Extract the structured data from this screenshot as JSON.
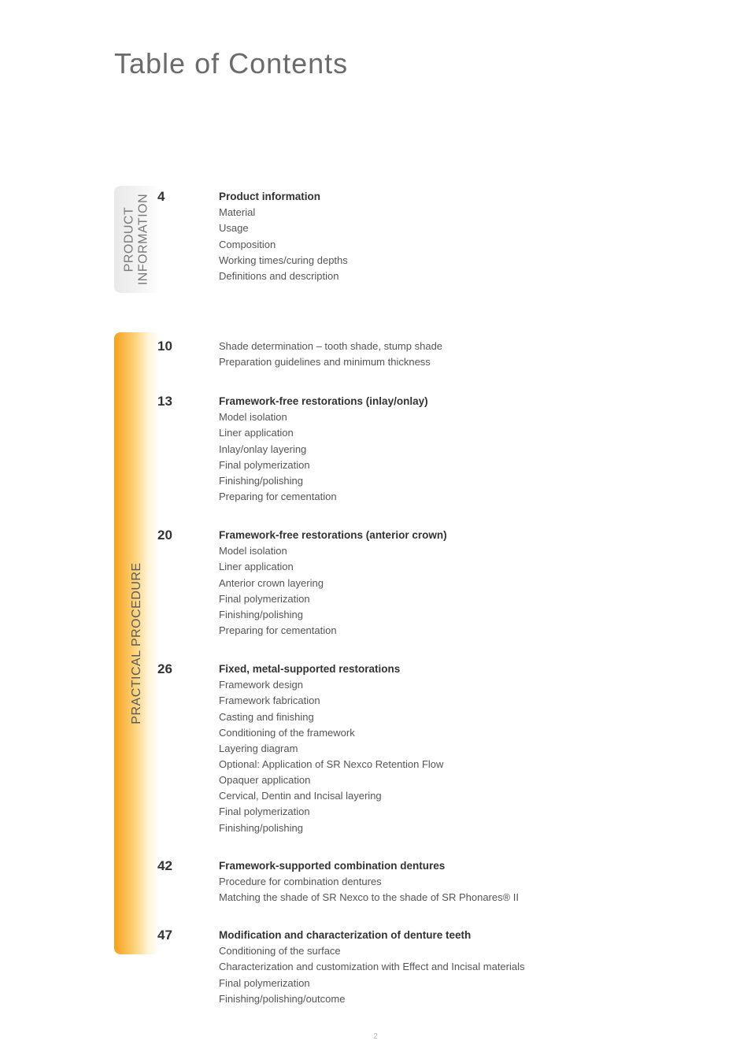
{
  "page_title": "Table of Contents",
  "footer_page_number": "2",
  "tabs": {
    "product": {
      "line1": "PRODUCT",
      "line2": "INFORMATION"
    },
    "practical": {
      "label": "PRACTICAL PROCEDURE"
    }
  },
  "entries": {
    "e4": {
      "page": "4",
      "title": "Product information",
      "lines": [
        "Material",
        "Usage",
        "Composition",
        "Working times/curing depths",
        "Definitions and description"
      ]
    },
    "e10": {
      "page": "10",
      "lines": [
        "Shade determination – tooth shade, stump shade",
        "Preparation guidelines and minimum thickness"
      ]
    },
    "e13": {
      "page": "13",
      "title": "Framework-free restorations (inlay/onlay)",
      "lines": [
        "Model isolation",
        "Liner application",
        "Inlay/onlay layering",
        "Final polymerization",
        "Finishing/polishing",
        "Preparing for cementation"
      ]
    },
    "e20": {
      "page": "20",
      "title": "Framework-free restorations (anterior crown)",
      "lines": [
        "Model isolation",
        "Liner application",
        "Anterior crown layering",
        "Final polymerization",
        "Finishing/polishing",
        "Preparing for cementation"
      ]
    },
    "e26": {
      "page": "26",
      "title": "Fixed, metal-supported restorations",
      "lines": [
        "Framework design",
        "Framework fabrication",
        "Casting and finishing",
        "Conditioning of the framework",
        "Layering diagram",
        "Optional: Application of SR Nexco Retention Flow",
        "Opaquer application",
        "Cervical, Dentin and Incisal layering",
        "Final polymerization",
        "Finishing/polishing"
      ]
    },
    "e42": {
      "page": "42",
      "title": "Framework-supported combination dentures",
      "lines": [
        "Procedure for combination dentures",
        "Matching the shade of SR Nexco to the shade of SR Phonares® II"
      ]
    },
    "e47": {
      "page": "47",
      "title": "Modification and characterization of denture teeth",
      "lines": [
        "Conditioning of the surface",
        "Characterization and customization with Effect and Incisal materials",
        "Final polymerization",
        "Finishing/polishing/outcome"
      ]
    }
  },
  "layout": {
    "entry_tops": {
      "e4": 240,
      "e10": 430,
      "e13": 500,
      "e20": 670,
      "e26": 840,
      "e42": 1090,
      "e47": 1178
    }
  }
}
